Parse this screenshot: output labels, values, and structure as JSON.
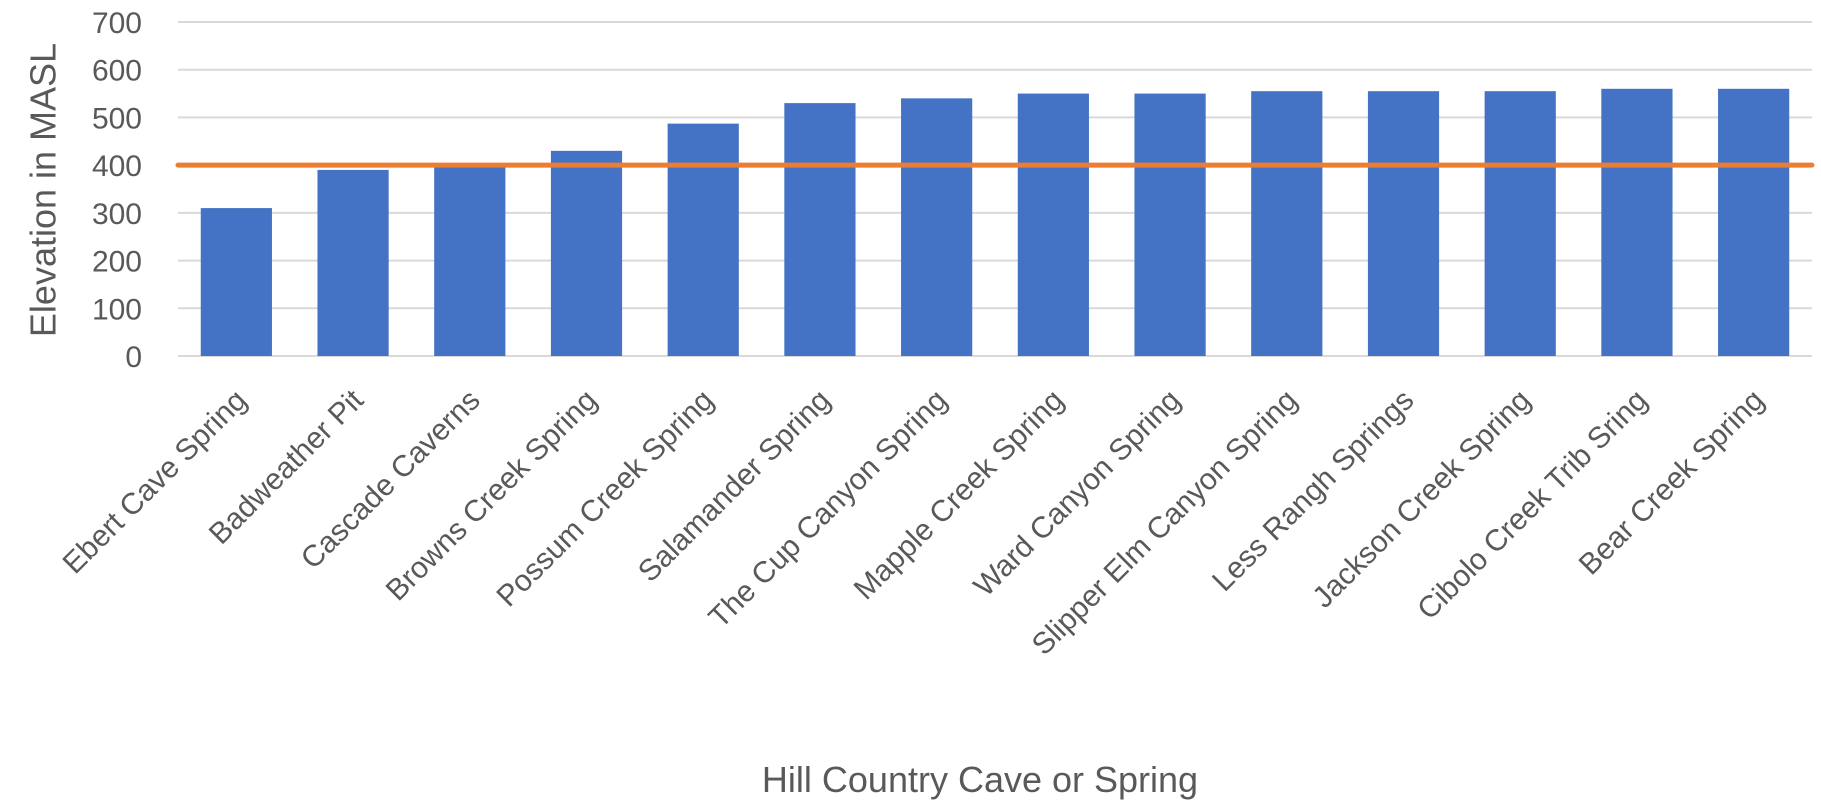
{
  "chart_data": {
    "type": "bar",
    "title": "",
    "xlabel": "Hill Country Cave or Spring",
    "ylabel": "Elevation in MASL",
    "ylim": [
      0,
      700
    ],
    "yticks": [
      0,
      100,
      200,
      300,
      400,
      500,
      600,
      700
    ],
    "grid": true,
    "categories": [
      "Ebert Cave Spring",
      "Badweather Pit",
      "Cascade Caverns",
      "Browns Creek Spring",
      "Possum Creek Spring",
      "Salamander Spring",
      "The Cup Canyon Spring",
      "Mapple Creek Spring",
      "Ward Canyon Spring",
      "Slipper Elm Canyon Spring",
      "Less Rangh Springs",
      "Jackson Creek Spring",
      "Cibolo Creek Trib Sring",
      "Bear Creek Spring"
    ],
    "series": [
      {
        "type": "bar",
        "color": "#4472c4",
        "values": [
          310,
          390,
          398,
          430,
          487,
          530,
          540,
          550,
          550,
          555,
          555,
          555,
          560,
          560
        ]
      },
      {
        "type": "line",
        "color": "#ed7d31",
        "values": [
          400,
          400,
          400,
          400,
          400,
          400,
          400,
          400,
          400,
          400,
          400,
          400,
          400,
          400
        ]
      }
    ]
  }
}
